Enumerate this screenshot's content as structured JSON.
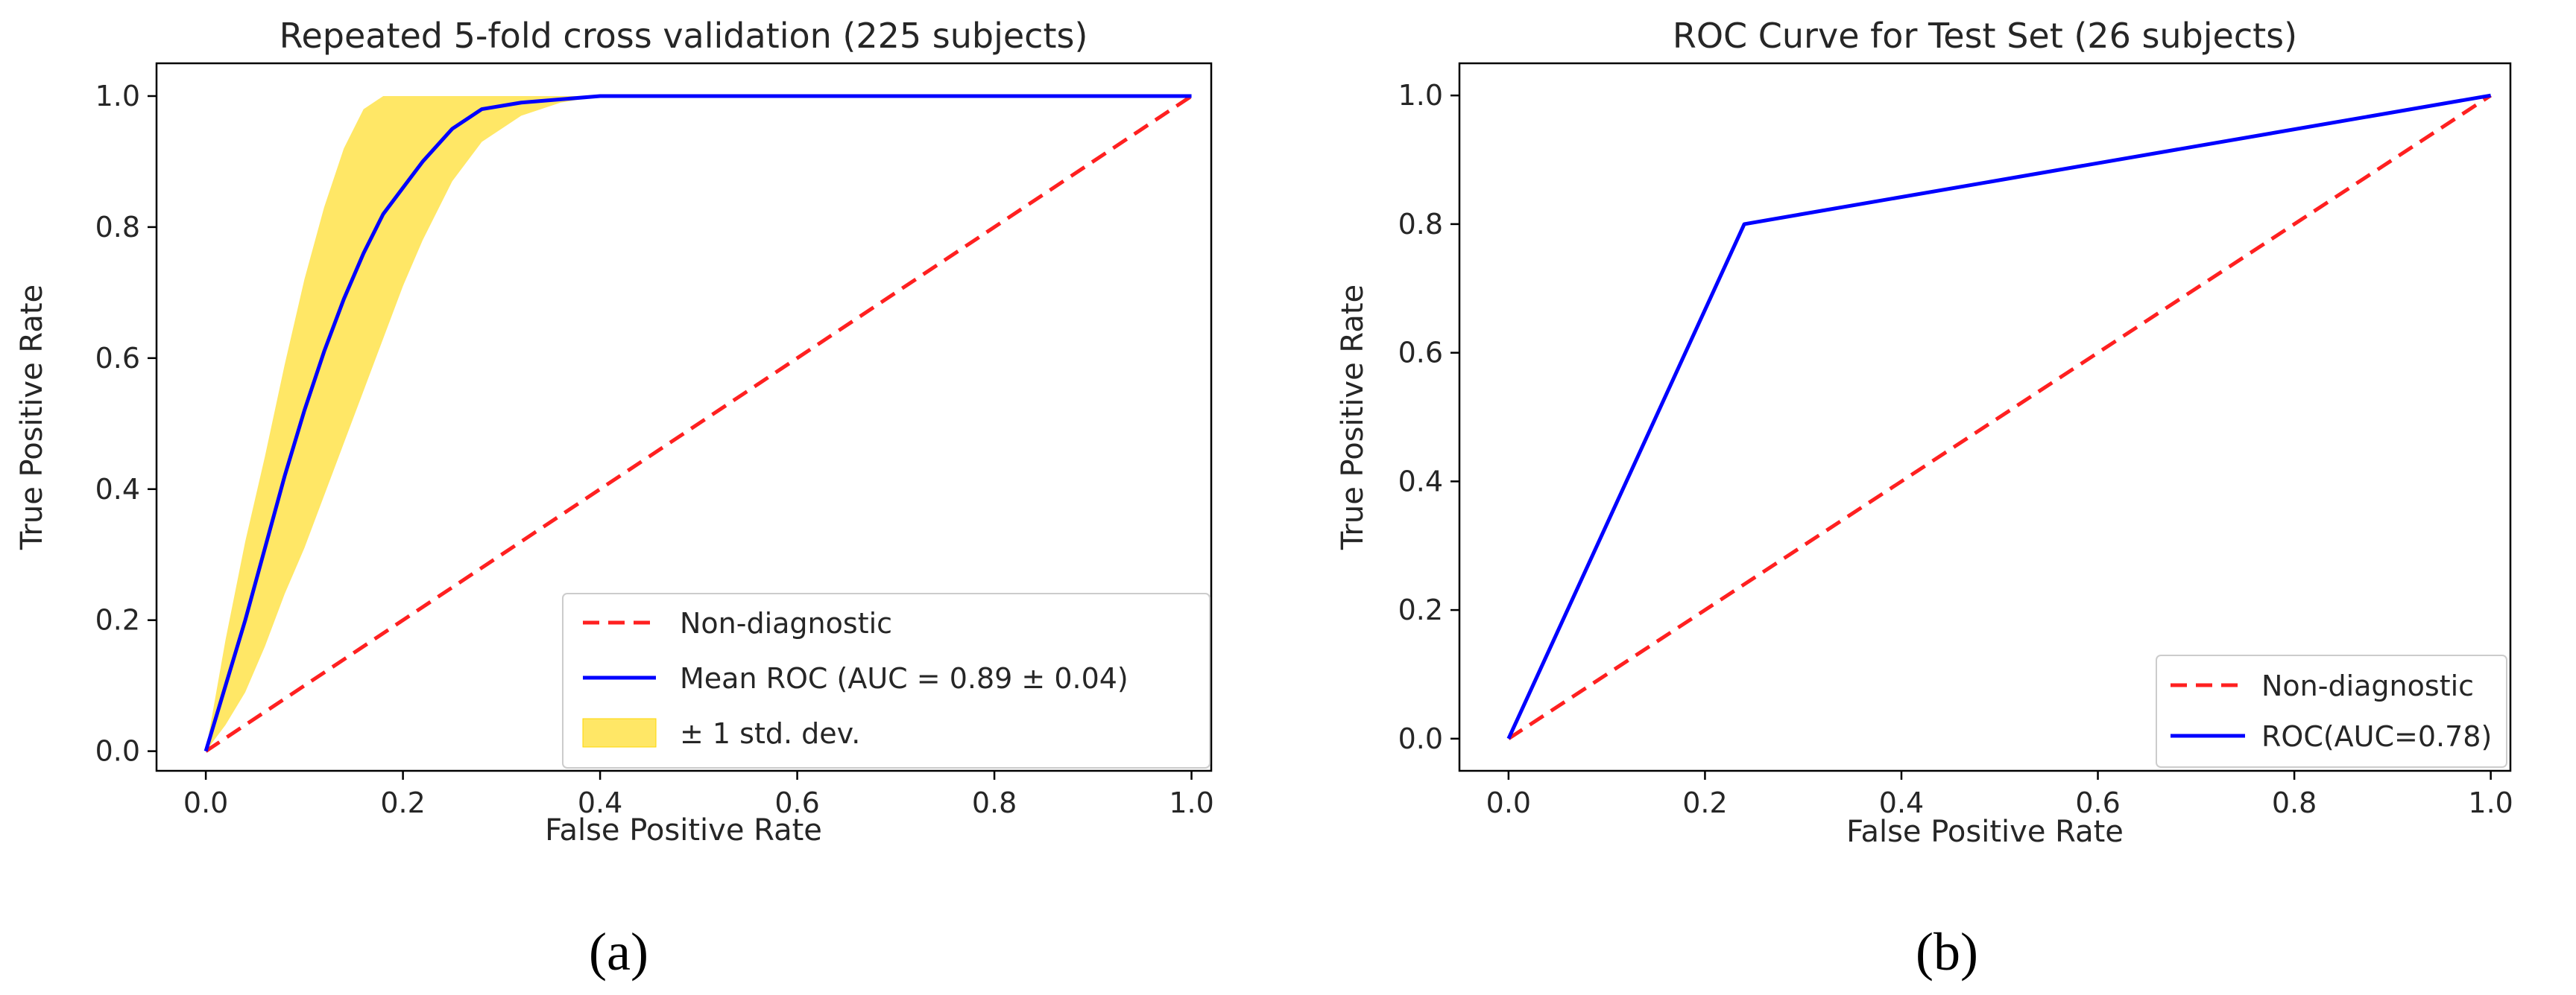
{
  "chart_data": [
    {
      "type": "line",
      "panel_label": "(a)",
      "title": "Repeated 5-fold cross validation (225 subjects)",
      "xlabel": "False Positive Rate",
      "ylabel": "True Positive Rate",
      "xlim": [
        -0.05,
        1.02
      ],
      "ylim": [
        -0.03,
        1.05
      ],
      "xticks": [
        0.0,
        0.2,
        0.4,
        0.6,
        0.8,
        1.0
      ],
      "yticks": [
        0.0,
        0.2,
        0.4,
        0.6,
        0.8,
        1.0
      ],
      "tick_labels": [
        "0.0",
        "0.2",
        "0.4",
        "0.6",
        "0.8",
        "1.0"
      ],
      "grid": false,
      "legend_position": "lower right",
      "series": [
        {
          "name": "Non-diagnostic",
          "style": "dashed",
          "color": "#ff2020",
          "x": [
            0.0,
            1.0
          ],
          "y": [
            0.0,
            1.0
          ]
        },
        {
          "name": "Mean ROC (AUC = 0.89 ± 0.04)",
          "style": "solid",
          "color": "#0000ff",
          "x": [
            0.0,
            0.02,
            0.04,
            0.06,
            0.08,
            0.1,
            0.12,
            0.14,
            0.16,
            0.18,
            0.2,
            0.22,
            0.25,
            0.28,
            0.32,
            0.36,
            0.4,
            0.45,
            0.5,
            0.6,
            0.7,
            0.8,
            0.9,
            1.0
          ],
          "y": [
            0.0,
            0.1,
            0.2,
            0.31,
            0.42,
            0.52,
            0.61,
            0.69,
            0.76,
            0.82,
            0.86,
            0.9,
            0.95,
            0.98,
            0.99,
            0.995,
            1.0,
            1.0,
            1.0,
            1.0,
            1.0,
            1.0,
            1.0,
            1.0
          ]
        },
        {
          "name": "± 1 std. dev.",
          "type": "band",
          "color": "#ffd700",
          "x": [
            0.0,
            0.02,
            0.04,
            0.06,
            0.08,
            0.1,
            0.12,
            0.14,
            0.16,
            0.18,
            0.2,
            0.22,
            0.25,
            0.28,
            0.32,
            0.36,
            0.4,
            0.45,
            0.5,
            0.6,
            0.7,
            0.8,
            0.9,
            1.0
          ],
          "upper": [
            0.0,
            0.17,
            0.32,
            0.45,
            0.59,
            0.72,
            0.83,
            0.92,
            0.98,
            1.0,
            1.0,
            1.0,
            1.0,
            1.0,
            1.0,
            1.0,
            1.0,
            1.0,
            1.0,
            1.0,
            1.0,
            1.0,
            1.0,
            1.0
          ],
          "lower": [
            0.0,
            0.04,
            0.09,
            0.16,
            0.24,
            0.31,
            0.39,
            0.47,
            0.55,
            0.63,
            0.71,
            0.78,
            0.87,
            0.93,
            0.97,
            0.99,
            1.0,
            1.0,
            1.0,
            1.0,
            1.0,
            1.0,
            1.0,
            1.0
          ]
        }
      ]
    },
    {
      "type": "line",
      "panel_label": "(b)",
      "title": "ROC Curve for Test Set (26 subjects)",
      "xlabel": "False Positive Rate",
      "ylabel": "True Positive Rate",
      "xlim": [
        -0.05,
        1.02
      ],
      "ylim": [
        -0.05,
        1.05
      ],
      "xticks": [
        0.0,
        0.2,
        0.4,
        0.6,
        0.8,
        1.0
      ],
      "yticks": [
        0.0,
        0.2,
        0.4,
        0.6,
        0.8,
        1.0
      ],
      "tick_labels": [
        "0.0",
        "0.2",
        "0.4",
        "0.6",
        "0.8",
        "1.0"
      ],
      "grid": false,
      "legend_position": "lower right",
      "series": [
        {
          "name": "Non-diagnostic",
          "style": "dashed",
          "color": "#ff2020",
          "x": [
            0.0,
            1.0
          ],
          "y": [
            0.0,
            1.0
          ]
        },
        {
          "name": "ROC(AUC=0.78)",
          "style": "solid",
          "color": "#0000ff",
          "x": [
            0.0,
            0.24,
            1.0
          ],
          "y": [
            0.0,
            0.8,
            1.0
          ]
        }
      ]
    }
  ]
}
